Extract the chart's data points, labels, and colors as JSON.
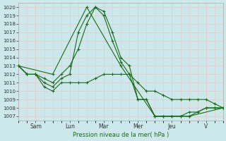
{
  "background_color": "#cce8ea",
  "grid_color": "#e8c8c8",
  "line_color": "#1a6b1a",
  "xlabel": "Pression niveau de la mer( hPa )",
  "ylim": [
    1006.5,
    1020.5
  ],
  "yticks": [
    1007,
    1008,
    1009,
    1010,
    1011,
    1012,
    1013,
    1014,
    1015,
    1016,
    1017,
    1018,
    1019,
    1020
  ],
  "day_labels": [
    "Sam",
    "Lun",
    "Mar",
    "Mer",
    "Jeu",
    "V"
  ],
  "day_positions": [
    24,
    72,
    120,
    168,
    216,
    264
  ],
  "xlim": [
    0,
    288
  ],
  "series": [
    {
      "x": [
        0,
        12,
        24,
        36,
        48,
        60,
        72,
        84,
        96,
        108,
        120,
        132,
        144,
        156,
        168,
        180,
        192,
        204,
        216,
        228,
        240,
        252,
        264,
        276,
        288
      ],
      "y": [
        1013,
        1012,
        1012,
        1011.5,
        1011,
        1012,
        1013,
        1015,
        1018,
        1020,
        1019.5,
        1017,
        1014,
        1013,
        1009,
        1009,
        1007,
        1007,
        1007,
        1007,
        1007,
        1007.5,
        1008,
        1008,
        1008
      ]
    },
    {
      "x": [
        0,
        12,
        24,
        36,
        48,
        60,
        72,
        84,
        96,
        108,
        120,
        132,
        144,
        156,
        168,
        180,
        192,
        204,
        216,
        228,
        240,
        252,
        264,
        276,
        288
      ],
      "y": [
        1013,
        1012,
        1012,
        1011,
        1010.5,
        1011.5,
        1012,
        1017,
        1019,
        1020,
        1019,
        1016,
        1013.5,
        1012,
        1009,
        1009,
        1007,
        1007,
        1007,
        1007,
        1007.5,
        1007.5,
        1008,
        1008,
        1008
      ]
    },
    {
      "x": [
        0,
        12,
        24,
        36,
        48,
        60,
        72,
        84,
        96,
        108,
        120,
        132,
        144,
        156,
        168,
        180,
        192,
        204,
        216,
        228,
        240,
        252,
        264,
        276,
        288
      ],
      "y": [
        1013,
        1012,
        1012,
        1010.5,
        1010,
        1011,
        1011,
        1011,
        1011,
        1011.5,
        1012,
        1012,
        1012,
        1012,
        1011,
        1010,
        1010,
        1009.5,
        1009,
        1009,
        1009,
        1009,
        1009,
        1008.5,
        1008
      ]
    },
    {
      "x": [
        0,
        48,
        96,
        144,
        192,
        240,
        288
      ],
      "y": [
        1013,
        1012,
        1020,
        1013,
        1007,
        1007,
        1008
      ]
    }
  ]
}
